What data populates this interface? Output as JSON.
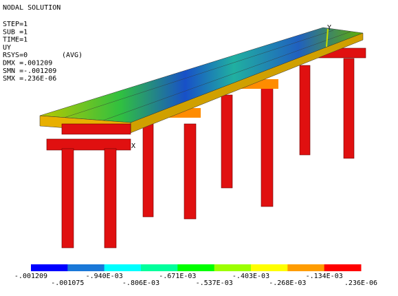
{
  "header": {
    "title": "NODAL SOLUTION",
    "info": [
      "STEP=1",
      "SUB =1",
      "TIME=1",
      "UY",
      "RSYS=0",
      "DMX =.001209",
      "SMN =-.001209",
      "SMX =.236E-06"
    ],
    "avg": "(AVG)"
  },
  "axes": {
    "x": "X",
    "y": "Y"
  },
  "legend": {
    "colors": [
      "#0000ff",
      "#1a78d8",
      "#00ffff",
      "#00ff9c",
      "#00ff00",
      "#9cff00",
      "#ffff00",
      "#ff9c00",
      "#ff0000"
    ],
    "labels": [
      "-.001209",
      "-.001075",
      "-.940E-03",
      "-.806E-03",
      "-.671E-03",
      "-.537E-03",
      "-.403E-03",
      "-.268E-03",
      "-.134E-03",
      ".236E-06"
    ]
  }
}
